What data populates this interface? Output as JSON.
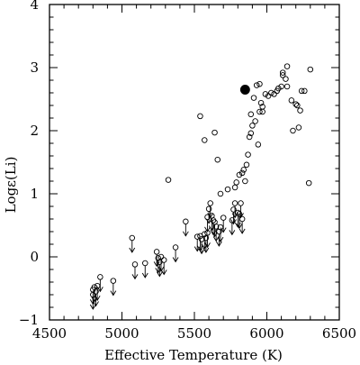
{
  "chart_data": {
    "type": "scatter",
    "xlabel": "Effective Temperature (K)",
    "ylabel": "Logε(Li)",
    "xlim": [
      4500,
      6500
    ],
    "ylim": [
      -1,
      4
    ],
    "x_ticks": [
      "4500",
      "5000",
      "5500",
      "6000",
      "6500"
    ],
    "y_ticks": [
      "−1",
      "0",
      "1",
      "2",
      "3",
      "4"
    ],
    "grid": false,
    "legend": "none",
    "detections": [
      [
        5320,
        1.22
      ],
      [
        5540,
        2.23
      ],
      [
        5570,
        1.85
      ],
      [
        5640,
        1.97
      ],
      [
        5660,
        1.54
      ],
      [
        5680,
        1.0
      ],
      [
        5730,
        1.07
      ],
      [
        5780,
        1.1
      ],
      [
        5790,
        1.18
      ],
      [
        5810,
        1.3
      ],
      [
        5830,
        1.33
      ],
      [
        5840,
        1.38
      ],
      [
        5860,
        1.46
      ],
      [
        5850,
        1.2
      ],
      [
        5870,
        1.62
      ],
      [
        5880,
        1.9
      ],
      [
        5890,
        1.96
      ],
      [
        5900,
        2.08
      ],
      [
        5890,
        2.26
      ],
      [
        5910,
        2.52
      ],
      [
        5920,
        2.15
      ],
      [
        5940,
        1.78
      ],
      [
        5950,
        2.3
      ],
      [
        5960,
        2.44
      ],
      [
        5970,
        2.38
      ],
      [
        5930,
        2.72
      ],
      [
        5950,
        2.74
      ],
      [
        5970,
        2.3
      ],
      [
        5990,
        2.58
      ],
      [
        6010,
        2.55
      ],
      [
        6030,
        2.6
      ],
      [
        6050,
        2.58
      ],
      [
        6070,
        2.63
      ],
      [
        6080,
        2.67
      ],
      [
        6100,
        2.7
      ],
      [
        6110,
        2.88
      ],
      [
        6110,
        2.92
      ],
      [
        6130,
        2.82
      ],
      [
        6140,
        3.02
      ],
      [
        6140,
        2.7
      ],
      [
        6170,
        2.48
      ],
      [
        6180,
        2.0
      ],
      [
        6200,
        2.42
      ],
      [
        6210,
        2.4
      ],
      [
        6220,
        2.05
      ],
      [
        6230,
        2.32
      ],
      [
        6240,
        2.63
      ],
      [
        6260,
        2.63
      ],
      [
        6290,
        1.17
      ],
      [
        6300,
        2.97
      ]
    ],
    "highlight": [
      [
        5850,
        2.65
      ]
    ],
    "upper_limits": [
      [
        4800,
        -0.52
      ],
      [
        4800,
        -0.6
      ],
      [
        4810,
        -0.48
      ],
      [
        4820,
        -0.55
      ],
      [
        4830,
        -0.46
      ],
      [
        4850,
        -0.32
      ],
      [
        4940,
        -0.38
      ],
      [
        5070,
        0.3
      ],
      [
        5090,
        -0.12
      ],
      [
        5160,
        -0.1
      ],
      [
        5240,
        0.08
      ],
      [
        5250,
        -0.02
      ],
      [
        5260,
        -0.08
      ],
      [
        5270,
        0.0
      ],
      [
        5290,
        -0.05
      ],
      [
        5370,
        0.15
      ],
      [
        5440,
        0.56
      ],
      [
        5520,
        0.32
      ],
      [
        5540,
        0.33
      ],
      [
        5550,
        0.28
      ],
      [
        5570,
        0.36
      ],
      [
        5580,
        0.3
      ],
      [
        5590,
        0.38
      ],
      [
        5590,
        0.63
      ],
      [
        5600,
        0.76
      ],
      [
        5610,
        0.85
      ],
      [
        5620,
        0.65
      ],
      [
        5630,
        0.58
      ],
      [
        5640,
        0.55
      ],
      [
        5650,
        0.48
      ],
      [
        5670,
        0.4
      ],
      [
        5680,
        0.47
      ],
      [
        5700,
        0.62
      ],
      [
        5760,
        0.58
      ],
      [
        5770,
        0.75
      ],
      [
        5780,
        0.85
      ],
      [
        5800,
        0.7
      ],
      [
        5810,
        0.68
      ],
      [
        5820,
        0.85
      ],
      [
        5830,
        0.6
      ]
    ]
  }
}
